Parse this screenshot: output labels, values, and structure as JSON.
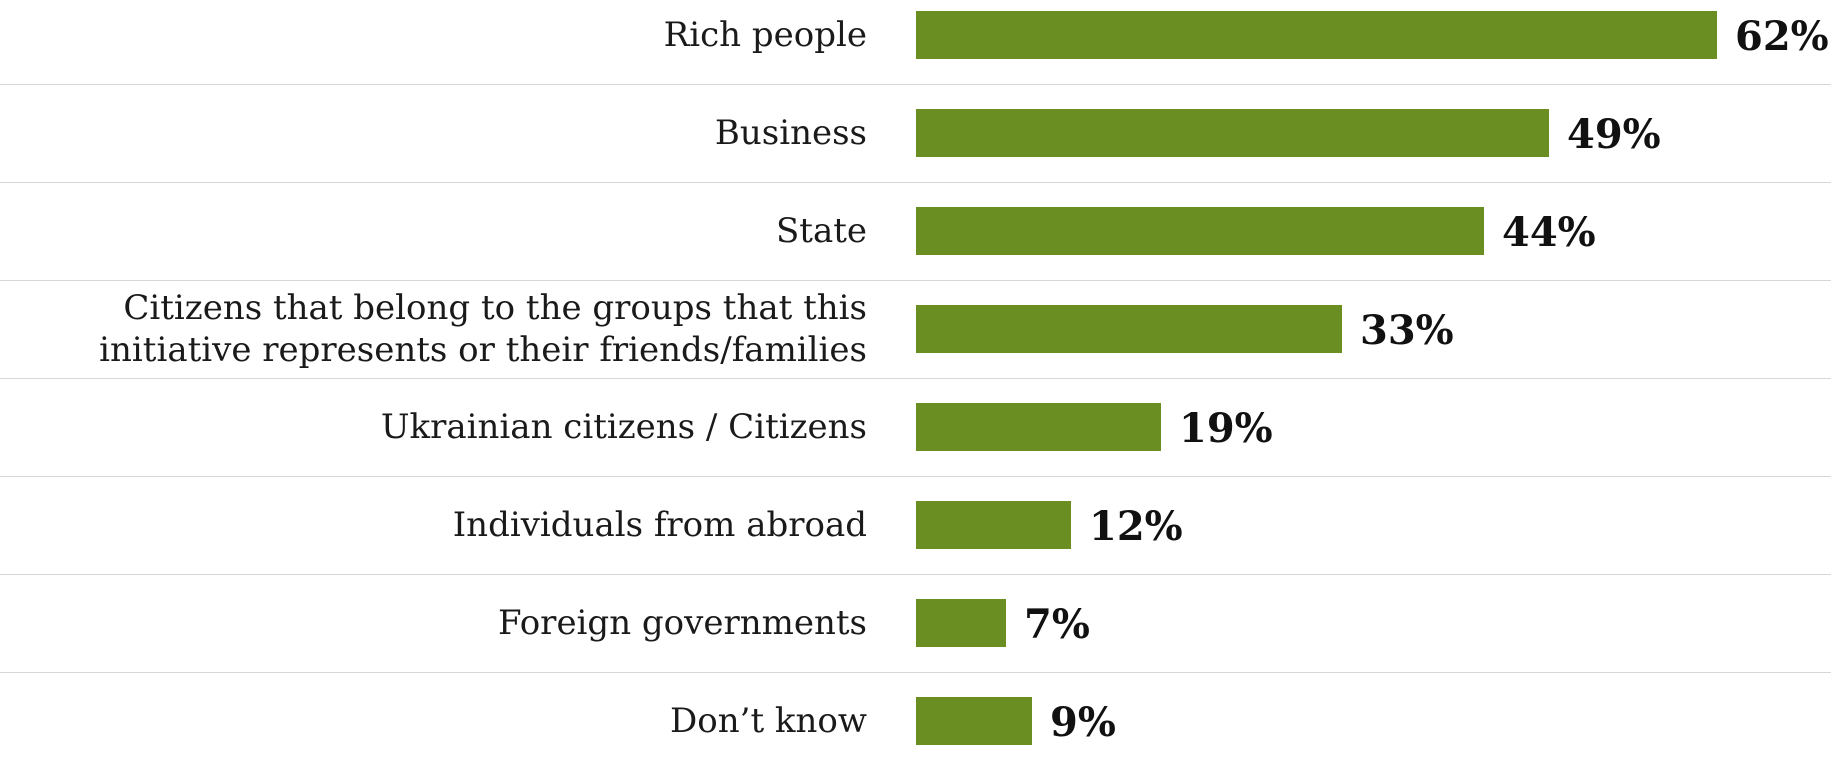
{
  "chart_data": {
    "type": "bar",
    "orientation": "horizontal",
    "categories": [
      "Rich people",
      "Business",
      "State",
      "Citizens that belong to the groups that this initiative represents or their friends/families",
      "Ukrainian citizens / Citizens",
      "Individuals from abroad",
      "Foreign governments",
      "Don’t know"
    ],
    "values": [
      62,
      49,
      44,
      33,
      19,
      12,
      7,
      9
    ],
    "value_labels": [
      "62%",
      "49%",
      "44%",
      "33%",
      "19%",
      "12%",
      "7%",
      "9%"
    ],
    "title": "",
    "xlabel": "",
    "ylabel": "",
    "xlim": [
      0,
      62
    ],
    "grid": false,
    "legend": "none",
    "bar_color": "#6b8e23",
    "divider_color": "#d6d6d6"
  }
}
